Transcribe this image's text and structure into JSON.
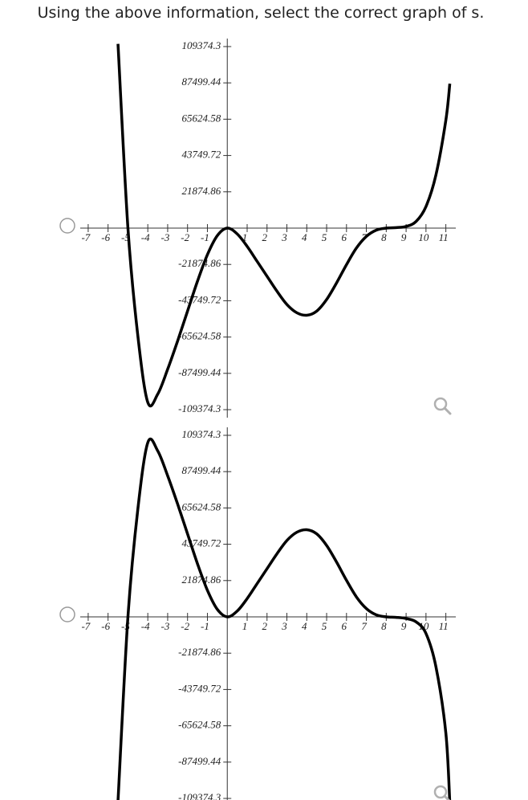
{
  "question": "Using the above information, select the correct graph of s.",
  "chart_data": [
    {
      "type": "line",
      "x": [
        -5.5,
        -5,
        -4.5,
        -4,
        -3.5,
        -3,
        -2.5,
        -2,
        -1.5,
        -1,
        -0.5,
        0,
        0.5,
        1,
        1.5,
        2,
        2.5,
        3,
        3.5,
        4,
        4.5,
        5,
        5.5,
        6,
        6.5,
        7,
        7.5,
        8,
        8.5,
        9,
        9.5,
        10,
        10.5,
        11,
        11.2
      ],
      "values": [
        111000,
        0,
        -65000,
        -105000,
        -100000,
        -85000,
        -68000,
        -50000,
        -32000,
        -16000,
        -4500,
        0,
        -3500,
        -11000,
        -20000,
        -29000,
        -38000,
        -46000,
        -51000,
        -52500,
        -50000,
        -43000,
        -33000,
        -22000,
        -12000,
        -5000,
        -1200,
        0,
        300,
        1000,
        4000,
        13000,
        32000,
        65000,
        87000
      ],
      "color": "#000000",
      "xlim": [
        -7.4,
        11.5
      ],
      "ylim": [
        -114200,
        114200
      ],
      "xticks": [
        -7,
        -6,
        -5,
        -4,
        -3,
        -2,
        -1,
        1,
        2,
        3,
        4,
        5,
        6,
        7,
        8,
        9,
        10,
        11
      ],
      "yticks": [
        109374.3,
        87499.44,
        65624.58,
        43749.72,
        21874.86,
        -21874.86,
        -43749.72,
        -65624.58,
        -87499.44,
        -109374.3
      ]
    },
    {
      "type": "line",
      "x": [
        -5.5,
        -5,
        -4.5,
        -4,
        -3.5,
        -3,
        -2.5,
        -2,
        -1.5,
        -1,
        -0.5,
        0,
        0.5,
        1,
        1.5,
        2,
        2.5,
        3,
        3.5,
        4,
        4.5,
        5,
        5.5,
        6,
        6.5,
        7,
        7.5,
        8,
        8.5,
        9,
        9.5,
        10,
        10.5,
        11,
        11.2
      ],
      "values": [
        -111000,
        0,
        65000,
        105000,
        100000,
        85000,
        68000,
        50000,
        32000,
        16000,
        4500,
        0,
        3500,
        11000,
        20000,
        29000,
        38000,
        46000,
        51000,
        52500,
        50000,
        43000,
        33000,
        22000,
        12000,
        5000,
        1200,
        0,
        -300,
        -1000,
        -3000,
        -10000,
        -30000,
        -70000,
        -112000
      ],
      "color": "#000000",
      "xlim": [
        -7.4,
        11.5
      ],
      "ylim": [
        -114200,
        114200
      ],
      "xticks": [
        -7,
        -6,
        -5,
        -4,
        -3,
        -2,
        -1,
        1,
        2,
        3,
        4,
        5,
        6,
        7,
        8,
        9,
        10,
        11
      ],
      "yticks": [
        109374.3,
        87499.44,
        65624.58,
        43749.72,
        21874.86,
        -21874.86,
        -43749.72,
        -65624.58,
        -87499.44,
        -109374.3
      ]
    }
  ]
}
